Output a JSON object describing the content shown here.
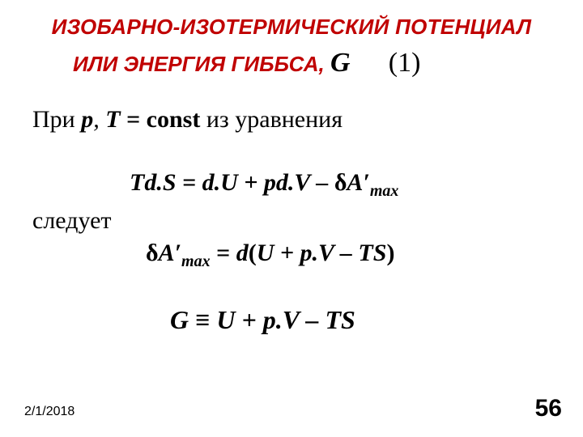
{
  "title": {
    "line1": "ИЗОБАРНО-ИЗОТЕРМИЧЕСКИЙ ПОТЕНЦИАЛ",
    "line2_text": "ИЛИ ЭНЕРГИЯ ГИББСА",
    "comma": ",",
    "g": "G",
    "one": "(1)"
  },
  "line_pri": {
    "pri": "При ",
    "p": "p",
    "comma": ", ",
    "T": "T",
    "eq": " = ",
    "const": "const",
    "suffix": " из уравнения"
  },
  "eq1": {
    "lhs": "Td.S = d.U  + pd.V – ",
    "delta": "δ",
    "A": "A′",
    "max": "max"
  },
  "follows": "следует",
  "eq2": {
    "delta": "δ",
    "A": "A′",
    "max": "max",
    "eq": " = ",
    "d": "d",
    "paren_l": "(",
    "body": "U + p.V – TS",
    "paren_r": ")"
  },
  "eq3": {
    "G": "G",
    "equiv": " ≡ ",
    "body": "U + p.V – TS"
  },
  "footer": {
    "date": "2/1/2018",
    "page": "56"
  },
  "colors": {
    "red": "#c00000",
    "black": "#000000",
    "bg": "#ffffff"
  }
}
